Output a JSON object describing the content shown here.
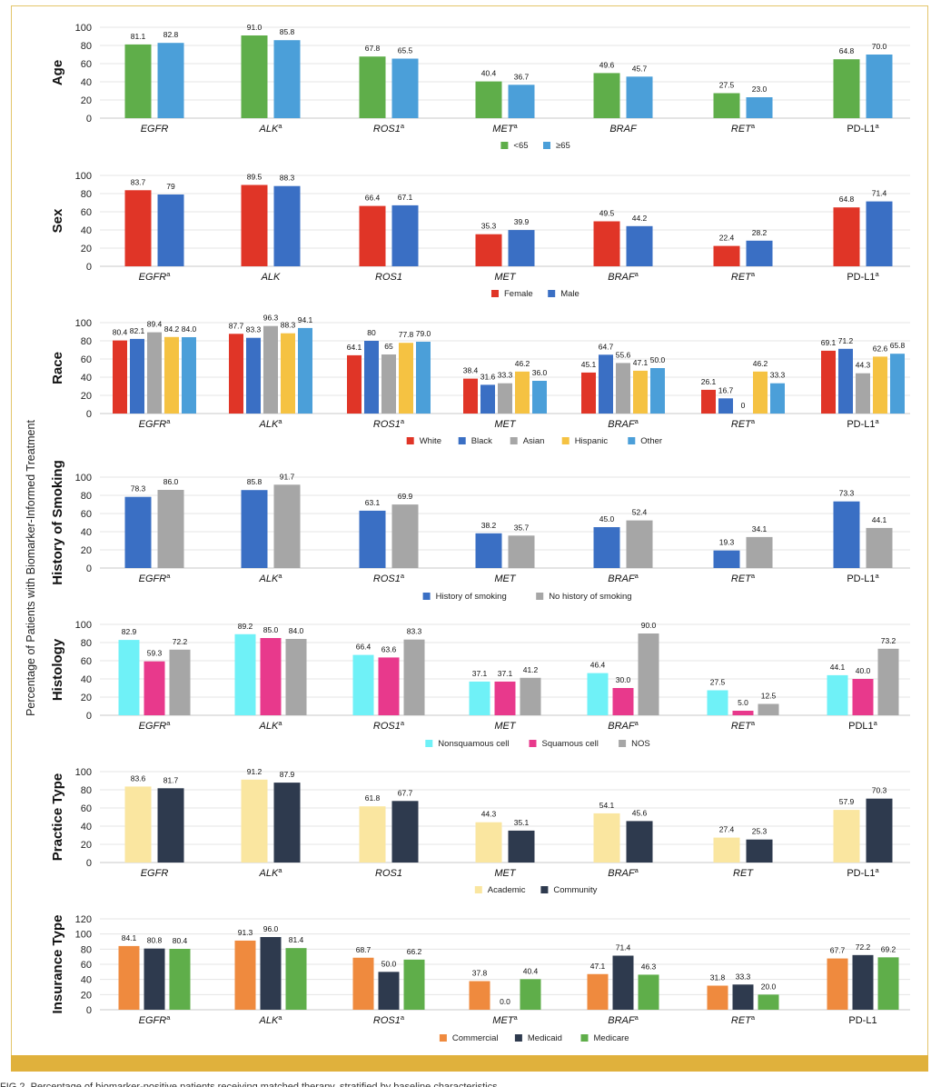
{
  "y_axis_label": "Percentage of Patients with Biomarker-Informed Treatment",
  "caption": "FIG 2. Percentage of biomarker-positive patients receiving matched therapy, stratified by baseline characteristics.",
  "chart_data": [
    {
      "type": "bar",
      "title": "Age",
      "ylabel": "Age",
      "ylim": [
        0,
        100
      ],
      "yticks": [
        0,
        20,
        40,
        60,
        80,
        100
      ],
      "categories": [
        [
          "EGFR",
          ""
        ],
        [
          "ALK",
          "a"
        ],
        [
          "ROS1",
          "a"
        ],
        [
          "MET",
          "a"
        ],
        [
          "BRAF",
          ""
        ],
        [
          "RET",
          "a"
        ],
        [
          "PD-L1",
          "a"
        ]
      ],
      "series": [
        {
          "name": "<65",
          "color": "#5fae4a",
          "values": [
            81.1,
            91.0,
            67.8,
            40.4,
            49.6,
            27.5,
            64.8
          ],
          "labels": [
            "81.1",
            "91.0",
            "67.8",
            "40.4",
            "49.6",
            "27.5",
            "64.8"
          ]
        },
        {
          "name": "≥65",
          "color": "#4b9fd9",
          "values": [
            82.8,
            85.8,
            65.5,
            36.7,
            45.7,
            23.0,
            70.0
          ],
          "labels": [
            "82.8",
            "85.8",
            "65.5",
            "36.7",
            "45.7",
            "23.0",
            "70.0"
          ]
        }
      ]
    },
    {
      "type": "bar",
      "title": "Sex",
      "ylabel": "Sex",
      "ylim": [
        0,
        100
      ],
      "yticks": [
        0,
        20,
        40,
        60,
        80,
        100
      ],
      "categories": [
        [
          "EGFR",
          "a"
        ],
        [
          "ALK",
          ""
        ],
        [
          "ROS1",
          ""
        ],
        [
          "MET",
          ""
        ],
        [
          "BRAF",
          "a"
        ],
        [
          "RET",
          "a"
        ],
        [
          "PD-L1",
          "a"
        ]
      ],
      "series": [
        {
          "name": "Female",
          "color": "#e03527",
          "values": [
            83.7,
            89.5,
            66.4,
            35.3,
            49.5,
            22.4,
            64.8
          ],
          "labels": [
            "83.7",
            "89.5",
            "66.4",
            "35.3",
            "49.5",
            "22.4",
            "64.8"
          ]
        },
        {
          "name": "Male",
          "color": "#3a6fc4",
          "values": [
            79,
            88.3,
            67.1,
            39.9,
            44.2,
            28.2,
            71.4
          ],
          "labels": [
            "79",
            "88.3",
            "67.1",
            "39.9",
            "44.2",
            "28.2",
            "71.4"
          ]
        }
      ]
    },
    {
      "type": "bar",
      "title": "Race",
      "ylabel": "Race",
      "ylim": [
        0,
        100
      ],
      "yticks": [
        0,
        20,
        40,
        60,
        80,
        100
      ],
      "categories": [
        [
          "EGFR",
          "a"
        ],
        [
          "ALK",
          "a"
        ],
        [
          "ROS1",
          "a"
        ],
        [
          "MET",
          ""
        ],
        [
          "BRAF",
          "a"
        ],
        [
          "RET",
          "a"
        ],
        [
          "PD-L1",
          "a"
        ]
      ],
      "series": [
        {
          "name": "White",
          "color": "#e03527",
          "values": [
            80.4,
            87.7,
            64.1,
            38.4,
            45.1,
            26.1,
            69.1
          ],
          "labels": [
            "80.4",
            "87.7",
            "64.1",
            "38.4",
            "45.1",
            "26.1",
            "69.1"
          ]
        },
        {
          "name": "Black",
          "color": "#3a6fc4",
          "values": [
            82.1,
            83.3,
            80,
            31.6,
            64.7,
            16.7,
            71.2
          ],
          "labels": [
            "82.1",
            "83.3",
            "80",
            "31.6",
            "64.7",
            "16.7",
            "71.2"
          ]
        },
        {
          "name": "Asian",
          "color": "#a6a6a6",
          "values": [
            89.4,
            96.3,
            65,
            33.3,
            55.6,
            0,
            44.3
          ],
          "labels": [
            "89.4",
            "96.3",
            "65",
            "33.3",
            "55.6",
            "0",
            "44.3"
          ]
        },
        {
          "name": "Hispanic",
          "color": "#f5c242",
          "values": [
            84.2,
            88.3,
            77.8,
            46.2,
            47.1,
            46.2,
            62.6
          ],
          "labels": [
            "84.2",
            "88.3",
            "77.8",
            "46.2",
            "47.1",
            "46.2",
            "62.6"
          ]
        },
        {
          "name": "Other",
          "color": "#4b9fd9",
          "values": [
            84.0,
            94.1,
            79.0,
            36.0,
            50.0,
            33.3,
            65.8
          ],
          "labels": [
            "84.0",
            "94.1",
            "79.0",
            "36.0",
            "50.0",
            "33.3",
            "65.8"
          ]
        }
      ]
    },
    {
      "type": "bar",
      "title": "History of Smoking",
      "ylabel": "History of Smoking",
      "ylim": [
        0,
        100
      ],
      "yticks": [
        0,
        20,
        40,
        60,
        80,
        100
      ],
      "categories": [
        [
          "EGFR",
          "a"
        ],
        [
          "ALK",
          "a"
        ],
        [
          "ROS1",
          "a"
        ],
        [
          "MET",
          ""
        ],
        [
          "BRAF",
          "a"
        ],
        [
          "RET",
          "a"
        ],
        [
          "PD-L1",
          "a"
        ]
      ],
      "series": [
        {
          "name": "History of smoking",
          "color": "#3a6fc4",
          "values": [
            78.3,
            85.8,
            63.1,
            38.2,
            45.0,
            19.3,
            73.3
          ],
          "labels": [
            "78.3",
            "85.8",
            "63.1",
            "38.2",
            "45.0",
            "19.3",
            "73.3"
          ]
        },
        {
          "name": "No history of smoking",
          "color": "#a6a6a6",
          "values": [
            86.0,
            91.7,
            69.9,
            35.7,
            52.4,
            34.1,
            44.1
          ],
          "labels": [
            "86.0",
            "91.7",
            "69.9",
            "35.7",
            "52.4",
            "34.1",
            "44.1"
          ]
        }
      ]
    },
    {
      "type": "bar",
      "title": "Histology",
      "ylabel": "Histology",
      "ylim": [
        0,
        100
      ],
      "yticks": [
        0,
        20,
        40,
        60,
        80,
        100
      ],
      "categories": [
        [
          "EGFR",
          "a"
        ],
        [
          "ALK",
          "a"
        ],
        [
          "ROS1",
          "a"
        ],
        [
          "MET",
          ""
        ],
        [
          "BRAF",
          "a"
        ],
        [
          "RET",
          "a"
        ],
        [
          "PDL1",
          "a"
        ]
      ],
      "series": [
        {
          "name": "Nonsquamous cell",
          "color": "#6ff1f7",
          "values": [
            82.9,
            89.2,
            66.4,
            37.1,
            46.4,
            27.5,
            44.1
          ],
          "labels": [
            "82.9",
            "89.2",
            "66.4",
            "37.1",
            "46.4",
            "27.5",
            "44.1"
          ]
        },
        {
          "name": "Squamous cell",
          "color": "#e8398c",
          "values": [
            59.3,
            85.0,
            63.6,
            37.1,
            30.0,
            5.0,
            40.0
          ],
          "labels": [
            "59.3",
            "85.0",
            "63.6",
            "37.1",
            "30.0",
            "5.0",
            "40.0"
          ]
        },
        {
          "name": "NOS",
          "color": "#a6a6a6",
          "values": [
            72.2,
            84.0,
            83.3,
            41.2,
            90.0,
            12.5,
            73.2
          ],
          "labels": [
            "72.2",
            "84.0",
            "83.3",
            "41.2",
            "90.0",
            "12.5",
            "73.2"
          ]
        }
      ]
    },
    {
      "type": "bar",
      "title": "Practice Type",
      "ylabel": "Practice Type",
      "ylim": [
        0,
        100
      ],
      "yticks": [
        0,
        20,
        40,
        60,
        80,
        100
      ],
      "categories": [
        [
          "EGFR",
          ""
        ],
        [
          "ALK",
          "a"
        ],
        [
          "ROS1",
          ""
        ],
        [
          "MET",
          ""
        ],
        [
          "BRAF",
          "a"
        ],
        [
          "RET",
          ""
        ],
        [
          "PD-L1",
          "a"
        ]
      ],
      "series": [
        {
          "name": "Academic",
          "color": "#fae6a0",
          "values": [
            83.6,
            91.2,
            61.8,
            44.3,
            54.1,
            27.4,
            57.9
          ],
          "labels": [
            "83.6",
            "91.2",
            "61.8",
            "44.3",
            "54.1",
            "27.4",
            "57.9"
          ]
        },
        {
          "name": "Community",
          "color": "#2e3a4e",
          "values": [
            81.7,
            87.9,
            67.7,
            35.1,
            45.6,
            25.3,
            70.3
          ],
          "labels": [
            "81.7",
            "87.9",
            "67.7",
            "35.1",
            "45.6",
            "25.3",
            "70.3"
          ]
        }
      ]
    },
    {
      "type": "bar",
      "title": "Insurance Type",
      "ylabel": "Insurance Type",
      "ylim": [
        0,
        120
      ],
      "yticks": [
        0,
        20,
        40,
        60,
        80,
        100,
        120
      ],
      "categories": [
        [
          "EGFR",
          "a"
        ],
        [
          "ALK",
          "a"
        ],
        [
          "ROS1",
          "a"
        ],
        [
          "MET",
          "a"
        ],
        [
          "BRAF",
          "a"
        ],
        [
          "RET",
          "a"
        ],
        [
          "PD-L1",
          ""
        ]
      ],
      "series": [
        {
          "name": "Commercial",
          "color": "#ef8a3e",
          "values": [
            84.1,
            91.3,
            68.7,
            37.8,
            47.1,
            31.8,
            67.7
          ],
          "labels": [
            "84.1",
            "91.3",
            "68.7",
            "37.8",
            "47.1",
            "31.8",
            "67.7"
          ]
        },
        {
          "name": "Medicaid",
          "color": "#2e3a4e",
          "values": [
            80.8,
            96.0,
            50.0,
            0.0,
            71.4,
            33.3,
            72.2
          ],
          "labels": [
            "80.8",
            "96.0",
            "50.0",
            "0.0",
            "71.4",
            "33.3",
            "72.2"
          ]
        },
        {
          "name": "Medicare",
          "color": "#5fae4a",
          "values": [
            80.4,
            81.4,
            66.2,
            40.4,
            46.3,
            20.0,
            69.2
          ],
          "labels": [
            "80.4",
            "81.4",
            "66.2",
            "40.4",
            "46.3",
            "20.0",
            "69.2"
          ]
        }
      ]
    }
  ]
}
